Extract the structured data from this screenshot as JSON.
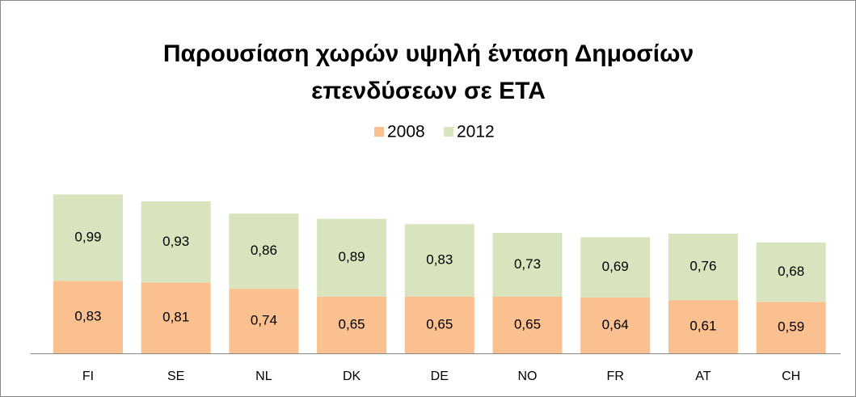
{
  "chart_data": {
    "type": "stacked_bar",
    "title": "Παρουσίαση χωρών υψηλή ένταση Δημοσίων επενδύσεων σε ΕΤΑ",
    "categories": [
      "FI",
      "SE",
      "NL",
      "DK",
      "DE",
      "NO",
      "FR",
      "AT",
      "CH"
    ],
    "series": [
      {
        "name": "2008",
        "color": "#fac090",
        "values": [
          0.83,
          0.81,
          0.74,
          0.65,
          0.65,
          0.65,
          0.64,
          0.61,
          0.59
        ],
        "value_labels": [
          "0,83",
          "0,81",
          "0,74",
          "0,65",
          "0,65",
          "0,65",
          "0,64",
          "0,61",
          "0,59"
        ]
      },
      {
        "name": "2012",
        "color": "#d7e4bd",
        "values": [
          0.99,
          0.93,
          0.86,
          0.89,
          0.83,
          0.73,
          0.69,
          0.76,
          0.68
        ],
        "value_labels": [
          "0,99",
          "0,93",
          "0,86",
          "0,89",
          "0,83",
          "0,73",
          "0,69",
          "0,76",
          "0,68"
        ]
      }
    ],
    "legend": "top"
  }
}
